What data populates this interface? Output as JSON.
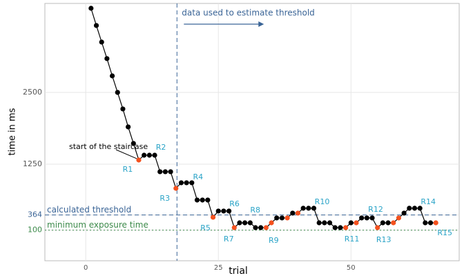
{
  "chart_data": {
    "type": "line",
    "x_label": "trial",
    "y_label": "time in ms",
    "xlim": [
      -7.7,
      70.4
    ],
    "ylim": [
      -433,
      4050
    ],
    "xticks": [
      0,
      25,
      50
    ],
    "yticks": [
      100,
      364,
      1250,
      2500
    ],
    "grid": true,
    "x": [
      1,
      2,
      3,
      4,
      5,
      6,
      7,
      8,
      9,
      10,
      11,
      12,
      13,
      14,
      15,
      16,
      17,
      18,
      19,
      20,
      21,
      22,
      23,
      24,
      25,
      26,
      27,
      28,
      29,
      30,
      31,
      32,
      33,
      34,
      35,
      36,
      37,
      38,
      39,
      40,
      41,
      42,
      43,
      44,
      45,
      46,
      47,
      48,
      49,
      50,
      51,
      52,
      53,
      54,
      55,
      56,
      57,
      58,
      59,
      60,
      61,
      62,
      63,
      64,
      65,
      66
    ],
    "series": [
      {
        "name": "staircase",
        "color": "#000000",
        "values": [
          3966,
          3666,
          3377,
          3089,
          2788,
          2500,
          2212,
          1899,
          1611,
          1322,
          1406,
          1406,
          1406,
          1118,
          1118,
          1118,
          829,
          926,
          926,
          926,
          625,
          625,
          625,
          325,
          433,
          433,
          433,
          144,
          228,
          228,
          228,
          144,
          144,
          144,
          228,
          313,
          313,
          313,
          397,
          397,
          482,
          482,
          482,
          228,
          228,
          228,
          144,
          144,
          144,
          228,
          228,
          313,
          313,
          313,
          144,
          228,
          228,
          228,
          313,
          397,
          482,
          482,
          482,
          228,
          228,
          228
        ],
        "marker_colors": [
          "#000000",
          "#000000",
          "#000000",
          "#000000",
          "#000000",
          "#000000",
          "#000000",
          "#000000",
          "#000000",
          "#f4511e",
          "#000000",
          "#000000",
          "#000000",
          "#000000",
          "#000000",
          "#000000",
          "#f4511e",
          "#000000",
          "#000000",
          "#000000",
          "#000000",
          "#000000",
          "#000000",
          "#f4511e",
          "#000000",
          "#000000",
          "#000000",
          "#f4511e",
          "#000000",
          "#000000",
          "#000000",
          "#000000",
          "#000000",
          "#f4511e",
          "#f4511e",
          "#000000",
          "#000000",
          "#f4511e",
          "#000000",
          "#f4511e",
          "#000000",
          "#000000",
          "#000000",
          "#000000",
          "#000000",
          "#000000",
          "#000000",
          "#000000",
          "#f4511e",
          "#000000",
          "#f4511e",
          "#000000",
          "#000000",
          "#000000",
          "#f4511e",
          "#000000",
          "#000000",
          "#f4511e",
          "#f4511e",
          "#000000",
          "#000000",
          "#000000",
          "#000000",
          "#000000",
          "#000000",
          "#f4511e"
        ]
      }
    ],
    "reversal_labels": [
      "R1",
      "R2",
      "R3",
      "R4",
      "R5",
      "R6",
      "R7",
      "R8",
      "R9",
      "R10",
      "R11",
      "R12",
      "R13",
      "R14",
      "R15"
    ],
    "reversal_color": "#29a3c7",
    "threshold": {
      "value": 364,
      "label": "calculated threshold",
      "color": "#3a6496"
    },
    "minimum": {
      "value": 100,
      "label": "minimum exposure time",
      "color": "#3c8a4a"
    },
    "data_start": {
      "x": 17.2,
      "label": "data used to estimate threshold",
      "color": "#3a6496"
    },
    "start_annotation": "start of the staircase"
  }
}
